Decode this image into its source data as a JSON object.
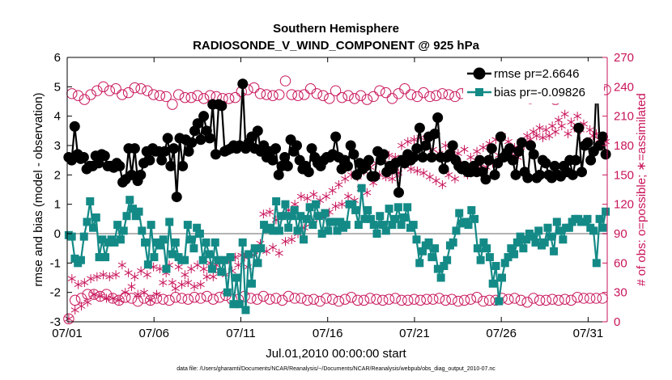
{
  "chart_data": {
    "type": "line",
    "title": "Southern Hemisphere",
    "subtitle": "RADIOSONDE_V_WIND_COMPONENT @ 925 hPa",
    "xlabel": "Jul.01,2010 00:00:00 start",
    "ylabel_left": "rmse and bias (model - observation)",
    "ylabel_right": "# of obs: o=possible; ∗=assimilated",
    "footnote": "data file: /Users/gharamti/Documents/NCAR/Reanalysis/~/Documents/NCAR/Reanalysis/webpub/obs_diag_output_2010-07.nc",
    "x_ticks": [
      "07/01",
      "07/06",
      "07/11",
      "07/16",
      "07/21",
      "07/26",
      "07/31"
    ],
    "x_tick_days": [
      1,
      6,
      11,
      16,
      21,
      26,
      31
    ],
    "xlim_days": [
      1,
      32.1
    ],
    "ylim_left": [
      -3,
      6
    ],
    "yticks_left": [
      "-3",
      "-2",
      "-1",
      "0",
      "1",
      "2",
      "3",
      "4",
      "5",
      "6"
    ],
    "ylim_right": [
      0,
      270
    ],
    "yticks_right": [
      "0",
      "30",
      "60",
      "90",
      "120",
      "150",
      "180",
      "210",
      "240",
      "270"
    ],
    "zero_line": 0,
    "legend_position": "top-right",
    "colors": {
      "rmse": "#000000",
      "bias": "#148a87",
      "obs": "#c8145a",
      "zero": "#b3b3b3"
    },
    "series": [
      {
        "name": "rmse pr=2.6646",
        "key": "rmse",
        "axis": "left",
        "values": [
          2.6,
          2.5,
          3.65,
          2.7,
          2.55,
          2.6,
          2.2,
          2.3,
          2.3,
          2.65,
          2.4,
          2.7,
          2.65,
          2.3,
          2.3,
          2.25,
          2.4,
          2.3,
          1.75,
          1.85,
          2.9,
          2.0,
          2.9,
          1.8,
          2.0,
          2.4,
          2.8,
          2.5,
          2.9,
          2.8,
          2.8,
          2.5,
          2.8,
          3.25,
          2.3,
          2.9,
          1.25,
          3.25,
          2.3,
          3.2,
          2.8,
          3.1,
          3.5,
          3.75,
          3.2,
          4.0,
          3.5,
          3.25,
          4.4,
          2.7,
          4.4,
          4.35,
          2.8,
          2.85,
          2.9,
          3.0,
          2.9,
          3.0,
          5.1,
          2.9,
          3.1,
          3.3,
          2.9,
          3.5,
          2.8,
          3.0,
          2.6,
          2.8,
          2.5,
          2.9,
          2.0,
          2.3,
          2.6,
          2.3,
          3.2,
          2.8,
          3.0,
          2.5,
          2.2,
          2.3,
          2.1,
          2.9,
          2.6,
          2.4,
          2.3,
          2.5,
          2.6,
          2.6,
          2.7,
          3.3,
          2.6,
          2.2,
          2.5,
          2.3,
          3.0,
          2.7,
          2.0,
          2.4,
          2.2,
          2.3,
          2.5,
          1.95,
          1.95,
          2.8,
          2.5,
          2.7,
          2.1,
          2.3,
          2.2,
          2.4,
          1.4,
          2.5,
          2.4,
          2.7,
          2.5,
          2.6,
          2.9,
          3.6,
          2.6,
          3.0,
          3.3,
          2.6,
          3.4,
          3.95,
          2.6,
          2.2,
          2.6,
          2.7,
          3.0,
          2.5,
          2.3,
          2.2,
          2.3,
          2.1,
          2.1,
          2.3,
          2.1,
          2.5,
          2.1,
          1.85,
          2.5,
          2.9,
          2.0,
          2.4,
          3.3,
          2.6,
          2.75,
          2.9,
          2.5,
          2.0,
          2.8,
          3.1,
          2.1,
          1.9,
          3.0,
          2.7,
          1.9,
          2.0,
          2.5,
          2.4,
          2.0,
          1.9,
          2.3,
          2.0,
          1.95,
          2.3,
          2.1,
          2.5,
          2.0,
          2.5,
          3.6,
          2.1,
          3.0,
          3.1,
          2.5,
          2.8,
          5.25,
          3.0,
          3.3,
          2.7
        ]
      },
      {
        "name": "bias pr=-0.09826",
        "key": "bias",
        "axis": "left",
        "values": [
          -0.05,
          -0.1,
          -0.85,
          -1.0,
          -0.9,
          -0.1,
          0.4,
          1.1,
          0.2,
          0.55,
          -0.8,
          -0.2,
          -0.8,
          -0.3,
          -0.2,
          -0.3,
          0.3,
          -0.2,
          0.1,
          0.6,
          1.15,
          0.85,
          0.6,
          0.75,
          0.1,
          -0.3,
          -1.05,
          0.3,
          -0.8,
          -0.3,
          -0.4,
          -0.2,
          -1.2,
          0.4,
          -0.7,
          -0.3,
          -0.8,
          -0.9,
          -0.9,
          0.3,
          -0.2,
          -0.5,
          0.2,
          0.0,
          -0.9,
          -0.3,
          -0.7,
          -1.2,
          -0.3,
          -0.9,
          -1.3,
          -0.9,
          -2.0,
          -0.8,
          -2.4,
          -1.5,
          -2.4,
          -0.3,
          -2.6,
          -0.7,
          -1.7,
          -0.5,
          -1.0,
          -0.5,
          0.3,
          0.15,
          0.2,
          0.1,
          1.1,
          0.1,
          0.6,
          1.0,
          0.2,
          0.6,
          0.8,
          0.1,
          0.6,
          -0.2,
          0.5,
          0.9,
          0.3,
          1.0,
          0.6,
          0.0,
          0.7,
          0.1,
          0.4,
          0.4,
          0.1,
          0.4,
          0.2,
          0.3,
          1.0,
          1.0,
          0.8,
          0.3,
          1.55,
          0.5,
          0.8,
          0.5,
          0.3,
          0.0,
          0.6,
          0.3,
          0.1,
          0.85,
          0.3,
          0.5,
          0.9,
          0.3,
          0.55,
          0.9,
          0.2,
          0.3,
          -0.2,
          -1.0,
          -0.6,
          -0.4,
          -0.3,
          -0.8,
          -0.5,
          -1.2,
          -1.5,
          -1.1,
          -0.9,
          -0.4,
          -0.3,
          0.1,
          0.7,
          0.35,
          0.4,
          0.3,
          0.8,
          0.5,
          -0.5,
          -0.9,
          -0.3,
          -0.5,
          -0.8,
          -1.7,
          -1.1,
          -2.3,
          -1.5,
          -1.0,
          -0.8,
          -0.5,
          -0.7,
          -0.3,
          -0.1,
          -0.5,
          -0.2,
          0.0,
          -0.1,
          -0.3,
          0.1,
          -0.4,
          -0.3,
          0.2,
          -0.1,
          -0.6,
          0.4,
          0.1,
          -0.2,
          0.2,
          0.2,
          0.4,
          0.5,
          0.5,
          0.4,
          0.4,
          0.5,
          0.2,
          0.1,
          -1.0,
          0.5,
          0.2,
          0.75
        ]
      },
      {
        "name": "possible",
        "key": "possible",
        "axis": "right",
        "marker": "o",
        "values": [
          3,
          233,
          22,
          231,
          24,
          227,
          28,
          232,
          28,
          236,
          26,
          240,
          28,
          236,
          24,
          238,
          22,
          232,
          25,
          234,
          24,
          239,
          21,
          238,
          24,
          236,
          22,
          232,
          24,
          231,
          23,
          230,
          22,
          222,
          25,
          232,
          24,
          229,
          23,
          229,
          25,
          231,
          24,
          228,
          26,
          231,
          23,
          230,
          25,
          228,
          27,
          228,
          23,
          229,
          23,
          235,
          26,
          237,
          24,
          239,
          23,
          233,
          26,
          232,
          23,
          231,
          24,
          232,
          22,
          246,
          26,
          232,
          24,
          231,
          24,
          232,
          22,
          238,
          23,
          233,
          21,
          231,
          24,
          228,
          23,
          236,
          21,
          229,
          23,
          231,
          25,
          228,
          22,
          231,
          22,
          227,
          24,
          230,
          23,
          236,
          22,
          234,
          23,
          228,
          24,
          233,
          22,
          238,
          22,
          232,
          23,
          230,
          22,
          234,
          23,
          230,
          23,
          231,
          24,
          233,
          22,
          232,
          23,
          230,
          21,
          233,
          22,
          236,
          23,
          244,
          25,
          234,
          21,
          238,
          22,
          234,
          22,
          231,
          24,
          230,
          23,
          233,
          24,
          236,
          22,
          232,
          20,
          228,
          24,
          233,
          22,
          231,
          22,
          233,
          23,
          227,
          22,
          230,
          23,
          234,
          22,
          231,
          25,
          234,
          24,
          230,
          24,
          231,
          24,
          238,
          24,
          237
        ]
      },
      {
        "name": "assimilated",
        "key": "assimilated",
        "axis": "right",
        "marker": "*",
        "values": [
          3,
          44,
          12,
          38,
          16,
          40,
          20,
          44,
          28,
          46,
          26,
          48,
          24,
          46,
          24,
          48,
          22,
          58,
          30,
          50,
          36,
          46,
          28,
          52,
          30,
          48,
          22,
          56,
          28,
          54,
          40,
          50,
          58,
          40,
          34,
          56,
          38,
          48,
          40,
          54,
          36,
          58,
          38,
          54,
          46,
          60,
          46,
          58,
          52,
          62,
          48,
          64,
          52,
          66,
          58,
          68,
          66,
          56,
          70,
          68,
          74,
          80,
          110,
          72,
          112,
          76,
          104,
          70,
          108,
          82,
          114,
          84,
          120,
          90,
          128,
          96,
          126,
          100,
          130,
          106,
          124,
          110,
          128,
          112,
          134,
          118,
          140,
          120,
          146,
          128,
          150,
          124,
          148,
          136,
          154,
          132,
          158,
          142,
          162,
          150,
          166,
          148,
          170,
          146,
          168,
          152,
          180,
          160,
          184,
          156,
          186,
          154,
          188,
          152,
          182,
          148,
          176,
          144,
          172,
          140,
          180,
          150,
          178,
          146,
          172,
          160,
          176,
          150,
          168,
          156,
          174,
          160,
          178,
          158,
          182,
          162,
          186,
          170,
          190,
          168,
          184,
          172,
          178,
          168,
          184,
          180,
          190,
          186,
          194,
          190,
          198,
          188,
          196,
          190,
          200,
          194,
          206,
          200,
          212,
          192,
          204,
          198,
          210,
          196,
          202,
          184,
          196,
          190,
          192,
          186,
          188,
          184
        ]
      }
    ]
  }
}
